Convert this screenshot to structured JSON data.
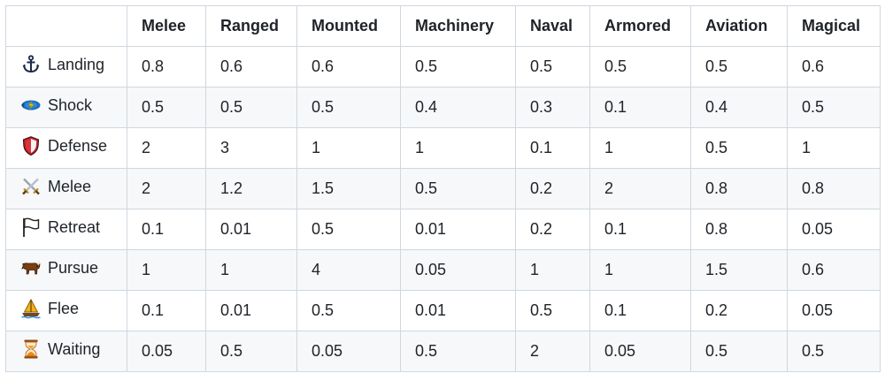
{
  "table": {
    "headers": [
      "",
      "Melee",
      "Ranged",
      "Mounted",
      "Machinery",
      "Naval",
      "Armored",
      "Aviation",
      "Magical"
    ],
    "rows": [
      {
        "label": "Landing",
        "icon": "anchor-icon",
        "values": [
          "0.8",
          "0.6",
          "0.6",
          "0.5",
          "0.5",
          "0.5",
          "0.5",
          "0.6"
        ]
      },
      {
        "label": "Shock",
        "icon": "shock-icon",
        "values": [
          "0.5",
          "0.5",
          "0.5",
          "0.4",
          "0.3",
          "0.1",
          "0.4",
          "0.5"
        ]
      },
      {
        "label": "Defense",
        "icon": "shield-icon",
        "values": [
          "2",
          "3",
          "1",
          "1",
          "0.1",
          "1",
          "0.5",
          "1"
        ]
      },
      {
        "label": "Melee",
        "icon": "crossed-swords-icon",
        "values": [
          "2",
          "1.2",
          "1.5",
          "0.5",
          "0.2",
          "2",
          "0.8",
          "0.8"
        ]
      },
      {
        "label": "Retreat",
        "icon": "white-flag-icon",
        "values": [
          "0.1",
          "0.01",
          "0.5",
          "0.01",
          "0.2",
          "0.1",
          "0.8",
          "0.05"
        ]
      },
      {
        "label": "Pursue",
        "icon": "charging-beast-icon",
        "values": [
          "1",
          "1",
          "4",
          "0.05",
          "1",
          "1",
          "1.5",
          "0.6"
        ]
      },
      {
        "label": "Flee",
        "icon": "sailboat-icon",
        "values": [
          "0.1",
          "0.01",
          "0.5",
          "0.01",
          "0.5",
          "0.1",
          "0.2",
          "0.05"
        ]
      },
      {
        "label": "Waiting",
        "icon": "hourglass-icon",
        "values": [
          "0.05",
          "0.5",
          "0.05",
          "0.5",
          "2",
          "0.05",
          "0.5",
          "0.5"
        ]
      }
    ]
  },
  "colors": {
    "border": "#d0d7de",
    "stripe": "#f6f8fa",
    "text": "#1f2328"
  }
}
